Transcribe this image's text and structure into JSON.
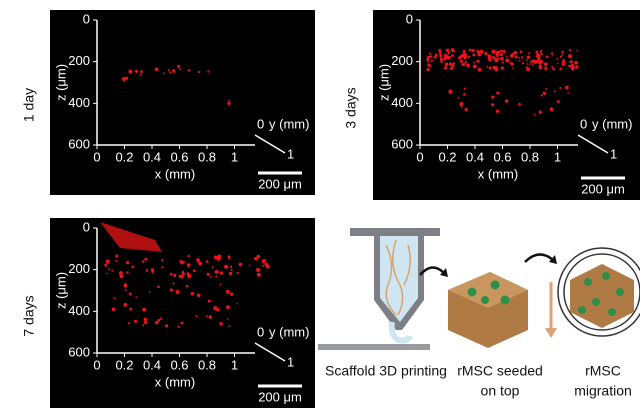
{
  "panels": [
    {
      "label": "1 day",
      "z_axis_label": "z (μm)",
      "zticks": [
        "0",
        "200",
        "400",
        "600"
      ],
      "xticks": [
        "0",
        "0.2",
        "0.4",
        "0.6",
        "0.8",
        "1"
      ],
      "x_axis_label": "x (mm)",
      "y_axis_label": "y (mm)",
      "yticks": [
        "0",
        "1"
      ],
      "scale_bar": "200 μm"
    },
    {
      "label": "3 days",
      "z_axis_label": "z (μm)",
      "zticks": [
        "0",
        "200",
        "400",
        "600"
      ],
      "xticks": [
        "0",
        "0.2",
        "0.4",
        "0.6",
        "0.8",
        "1"
      ],
      "x_axis_label": "x (mm)",
      "y_axis_label": "y (mm)",
      "yticks": [
        "0",
        "1"
      ],
      "scale_bar": "200 μm"
    },
    {
      "label": "7 days",
      "z_axis_label": "z (μm)",
      "zticks": [
        "0",
        "200",
        "400",
        "600"
      ],
      "xticks": [
        "0",
        "0.2",
        "0.4",
        "0.6",
        "0.8",
        "1"
      ],
      "x_axis_label": "x (mm)",
      "y_axis_label": "y (mm)",
      "yticks": [
        "0",
        "1"
      ],
      "scale_bar": "200 μm"
    }
  ],
  "schematic": {
    "steps": [
      {
        "lines": [
          "Scaffold 3D printing"
        ]
      },
      {
        "lines": [
          "rMSC seeded",
          "on top"
        ]
      },
      {
        "lines": [
          "rMSC",
          "migration"
        ]
      }
    ]
  }
}
